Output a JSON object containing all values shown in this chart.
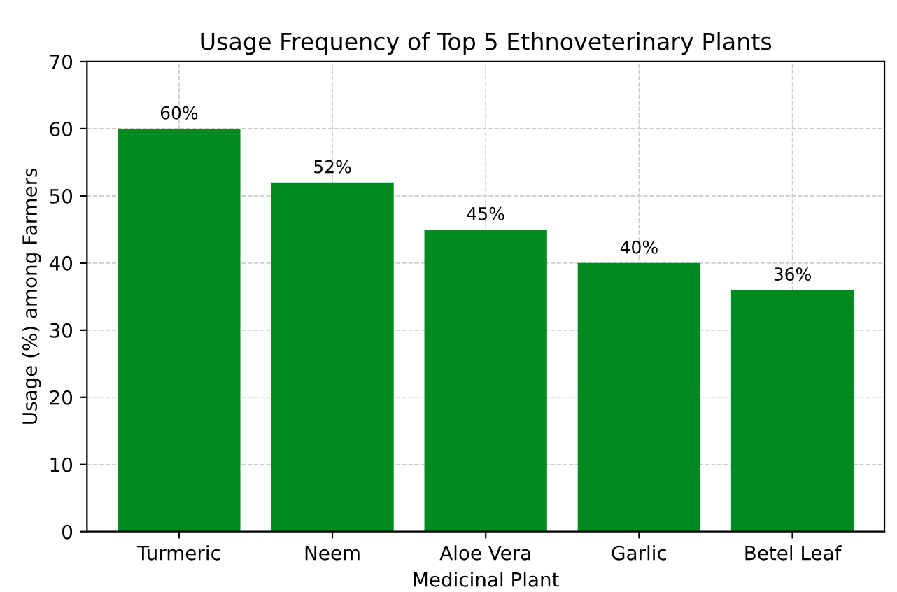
{
  "chart_data": {
    "type": "bar",
    "title": "Usage Frequency of Top 5 Ethnoveterinary Plants",
    "xlabel": "Medicinal Plant",
    "ylabel": "Usage (%) among Farmers",
    "categories": [
      "Turmeric",
      "Neem",
      "Aloe Vera",
      "Garlic",
      "Betel Leaf"
    ],
    "values": [
      60,
      52,
      45,
      40,
      36
    ],
    "value_labels": [
      "60%",
      "52%",
      "45%",
      "40%",
      "36%"
    ],
    "color": "#008b22",
    "ylim": [
      0,
      70
    ],
    "yticks": [
      0,
      10,
      20,
      30,
      40,
      50,
      60,
      70
    ],
    "grid": true
  }
}
